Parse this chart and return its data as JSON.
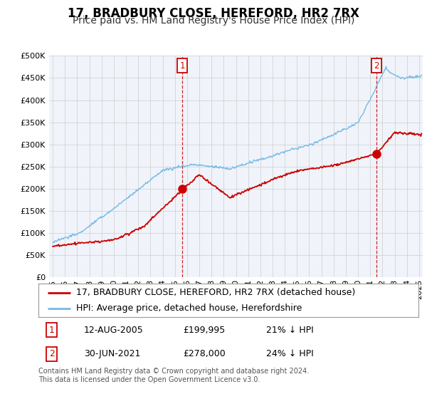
{
  "title": "17, BRADBURY CLOSE, HEREFORD, HR2 7RX",
  "subtitle": "Price paid vs. HM Land Registry's House Price Index (HPI)",
  "footer": "Contains HM Land Registry data © Crown copyright and database right 2024.\nThis data is licensed under the Open Government Licence v3.0.",
  "legend_line1": "17, BRADBURY CLOSE, HEREFORD, HR2 7RX (detached house)",
  "legend_line2": "HPI: Average price, detached house, Herefordshire",
  "annotation1_date": "12-AUG-2005",
  "annotation1_price": "£199,995",
  "annotation1_hpi": "21% ↓ HPI",
  "annotation2_date": "30-JUN-2021",
  "annotation2_price": "£278,000",
  "annotation2_hpi": "24% ↓ HPI",
  "sale1_x": 2005.62,
  "sale1_y": 199995,
  "sale2_x": 2021.5,
  "sale2_y": 278000,
  "ylim": [
    0,
    500000
  ],
  "yticks": [
    0,
    50000,
    100000,
    150000,
    200000,
    250000,
    300000,
    350000,
    400000,
    450000,
    500000
  ],
  "xlim_start": 1994.7,
  "xlim_end": 2025.3,
  "hpi_color": "#74b9e8",
  "price_color": "#cc0000",
  "grid_color": "#cccccc",
  "plot_bg_color": "#f0f4fa",
  "fig_bg_color": "#ffffff",
  "title_fontsize": 12,
  "subtitle_fontsize": 10,
  "tick_fontsize": 8,
  "legend_fontsize": 9,
  "annot_fontsize": 9,
  "footer_fontsize": 7
}
